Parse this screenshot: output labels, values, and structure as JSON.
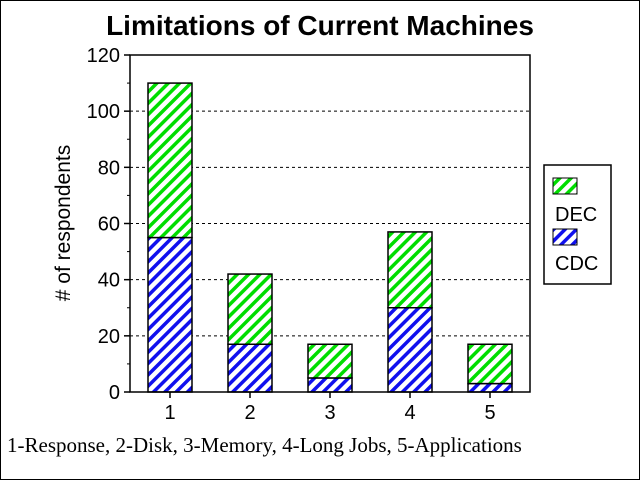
{
  "colors": {
    "dec_fg": "#00dd00",
    "dec_bg": "#ffffff",
    "cdc_fg": "#1010ee",
    "cdc_bg": "#ffffff"
  },
  "chart_data": {
    "type": "bar",
    "stacked": true,
    "title": "Limitations of Current Machines",
    "xlabel": "",
    "ylabel": "# of respondents",
    "ylim": [
      0,
      120
    ],
    "yticks": [
      "0",
      "20",
      "40",
      "60",
      "80",
      "100",
      "120"
    ],
    "categories": [
      "1",
      "2",
      "3",
      "4",
      "5"
    ],
    "series": [
      {
        "name": "CDC",
        "values": [
          55,
          17,
          5,
          30,
          3
        ]
      },
      {
        "name": "DEC",
        "values": [
          55,
          25,
          12,
          27,
          14
        ]
      }
    ],
    "grid": "horizontal dashed",
    "legend": "right",
    "caption": "1-Response, 2-Disk, 3-Memory, 4-Long Jobs, 5-Applications"
  }
}
